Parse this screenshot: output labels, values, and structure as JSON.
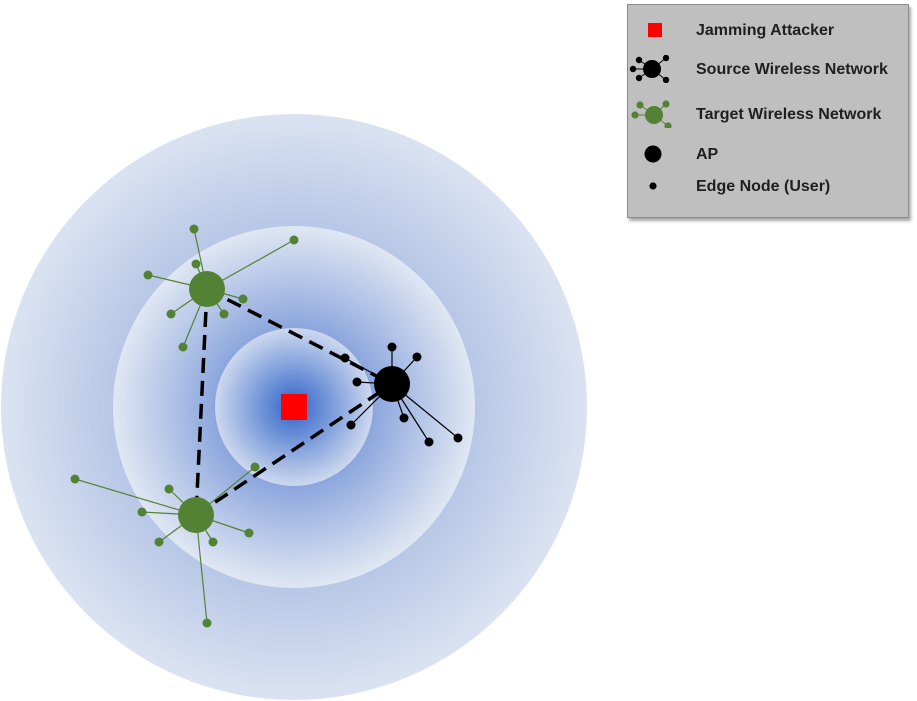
{
  "legend": {
    "items": [
      {
        "label": "Jamming Attacker",
        "symbol": "red-square-icon",
        "color": "#ff0000"
      },
      {
        "label": "Source Wireless Network",
        "symbol": "source-network-icon",
        "color": "#000000"
      },
      {
        "label": "Target Wireless Network",
        "symbol": "target-network-icon",
        "color": "#548235"
      },
      {
        "label": "AP",
        "symbol": "ap-icon",
        "color": "#000000"
      },
      {
        "label": "Edge Node (User)",
        "symbol": "edge-node-icon",
        "color": "#000000"
      }
    ]
  },
  "colors": {
    "jammer": "#ff0000",
    "source": "#000000",
    "target": "#548235",
    "target_line": "#548235",
    "ring_light": "#dbe3f2",
    "ring_core": "#2f64c9",
    "legend_bg": "#bfbfbf"
  }
}
